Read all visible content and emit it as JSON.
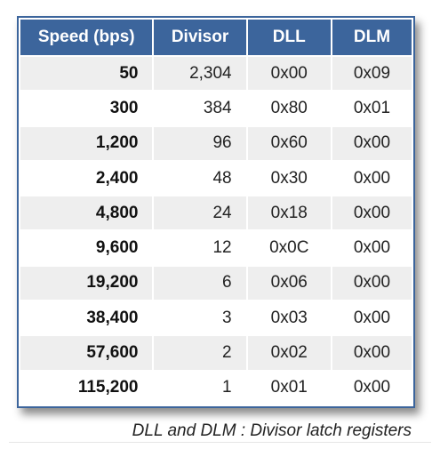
{
  "table": {
    "headers": [
      "Speed (bps)",
      "Divisor",
      "DLL",
      "DLM"
    ],
    "rows": [
      {
        "speed": "50",
        "divisor": "2,304",
        "dll": "0x00",
        "dlm": "0x09"
      },
      {
        "speed": "300",
        "divisor": "384",
        "dll": "0x80",
        "dlm": "0x01"
      },
      {
        "speed": "1,200",
        "divisor": "96",
        "dll": "0x60",
        "dlm": "0x00"
      },
      {
        "speed": "2,400",
        "divisor": "48",
        "dll": "0x30",
        "dlm": "0x00"
      },
      {
        "speed": "4,800",
        "divisor": "24",
        "dll": "0x18",
        "dlm": "0x00"
      },
      {
        "speed": "9,600",
        "divisor": "12",
        "dll": "0x0C",
        "dlm": "0x00"
      },
      {
        "speed": "19,200",
        "divisor": "6",
        "dll": "0x06",
        "dlm": "0x00"
      },
      {
        "speed": "38,400",
        "divisor": "3",
        "dll": "0x03",
        "dlm": "0x00"
      },
      {
        "speed": "57,600",
        "divisor": "2",
        "dll": "0x02",
        "dlm": "0x00"
      },
      {
        "speed": "115,200",
        "divisor": "1",
        "dll": "0x01",
        "dlm": "0x00"
      }
    ]
  },
  "caption": "DLL and DLM : Divisor latch registers",
  "colors": {
    "header_bg": "#3c659c",
    "header_text": "#ffffff",
    "row_stripe": "#eeeeee"
  }
}
